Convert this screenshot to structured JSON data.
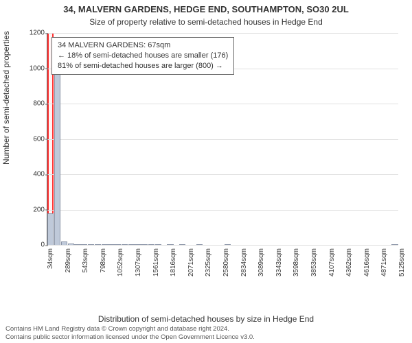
{
  "title": "34, MALVERN GARDENS, HEDGE END, SOUTHAMPTON, SO30 2UL",
  "subtitle": "Size of property relative to semi-detached houses in Hedge End",
  "ylabel": "Number of semi-detached properties",
  "xlabel": "Distribution of semi-detached houses by size in Hedge End",
  "footer1": "Contains HM Land Registry data © Crown copyright and database right 2024.",
  "footer2": "Contains public sector information licensed under the Open Government Licence v3.0.",
  "chart": {
    "type": "histogram",
    "ylim": [
      0,
      1200
    ],
    "yticks": [
      0,
      200,
      400,
      600,
      800,
      1000,
      1200
    ],
    "xtick_labels": [
      "34sqm",
      "289sqm",
      "543sqm",
      "798sqm",
      "1052sqm",
      "1307sqm",
      "1561sqm",
      "1816sqm",
      "2071sqm",
      "2325sqm",
      "2580sqm",
      "2834sqm",
      "3089sqm",
      "3343sqm",
      "3598sqm",
      "3853sqm",
      "4107sqm",
      "4362sqm",
      "4616sqm",
      "4871sqm",
      "5125sqm"
    ],
    "n_bins": 60,
    "highlight_bin_index": 0,
    "bar_color": "#bfc9d9",
    "bar_border": "#8a94a6",
    "grid_color": "#e0e0e0",
    "highlight_color": "#ff3030",
    "background_color": "#ffffff",
    "title_fontsize": 13,
    "label_fontsize": 12,
    "tick_fontsize": 10,
    "values": [
      180,
      1080,
      20,
      6,
      4,
      3,
      2,
      2,
      2,
      1,
      1,
      1,
      1,
      1,
      1,
      1,
      1,
      0,
      1,
      0,
      1,
      0,
      0,
      1,
      0,
      0,
      0,
      0,
      1,
      0,
      0,
      0,
      0,
      0,
      0,
      0,
      0,
      0,
      0,
      0,
      0,
      0,
      0,
      0,
      0,
      0,
      0,
      0,
      0,
      0,
      0,
      0,
      0,
      0,
      0,
      0,
      0,
      0,
      0,
      1
    ]
  },
  "infobox": {
    "line1": "34 MALVERN GARDENS: 67sqm",
    "line2": "← 18% of semi-detached houses are smaller (176)",
    "line3": "81% of semi-detached houses are larger (800) →"
  }
}
